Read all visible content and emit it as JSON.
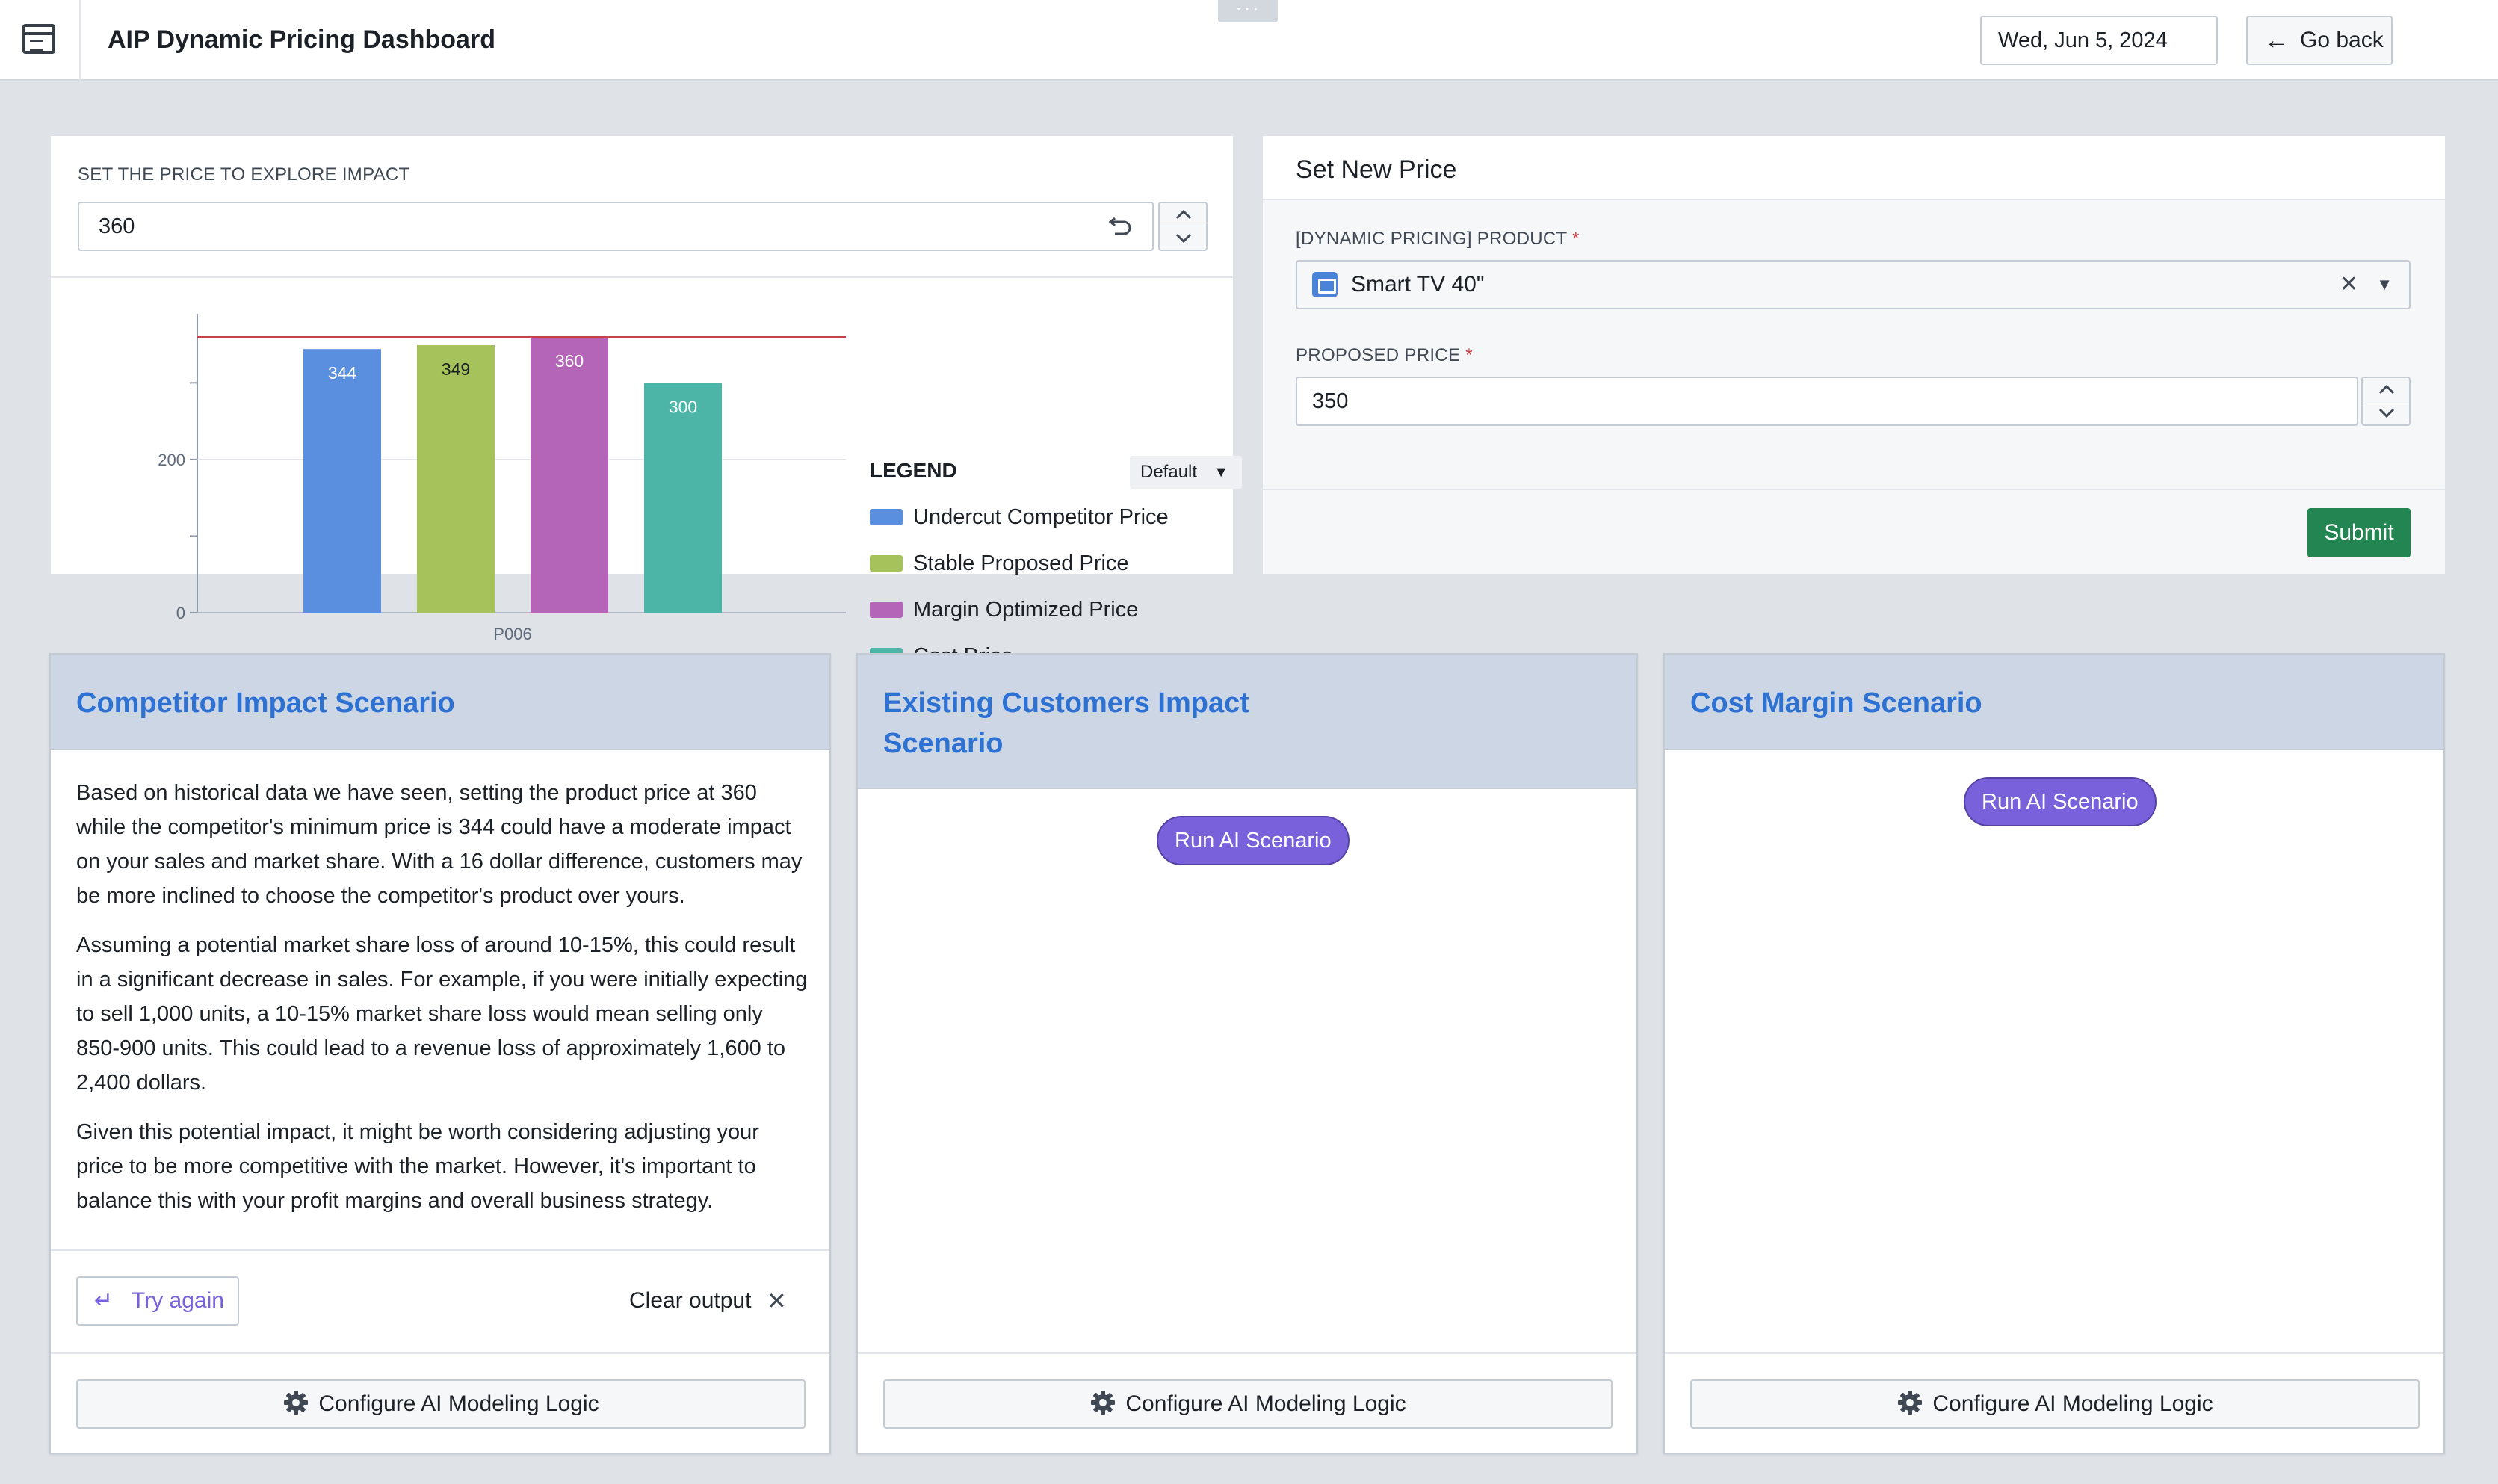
{
  "header": {
    "title": "AIP Dynamic Pricing Dashboard",
    "drag_handle": "···",
    "date": "Wed, Jun 5, 2024",
    "go_back_label": "Go back"
  },
  "explore": {
    "label": "SET THE PRICE TO EXPLORE IMPACT",
    "price_value": "360"
  },
  "chart_data": {
    "type": "bar",
    "categories": [
      "P006"
    ],
    "series": [
      {
        "name": "Undercut Competitor Price",
        "values": [
          344
        ],
        "color": "#5a8fdf"
      },
      {
        "name": "Stable Proposed Price",
        "values": [
          349
        ],
        "color": "#a6c25a"
      },
      {
        "name": "Margin Optimized Price",
        "values": [
          360
        ],
        "color": "#b565b8"
      },
      {
        "name": "Cost Price",
        "values": [
          300
        ],
        "color": "#4db5a8"
      }
    ],
    "reference_line": {
      "value": 360,
      "color": "#c8414a"
    },
    "yticks": [
      "0",
      "200"
    ],
    "ylim": [
      0,
      390
    ],
    "legend": {
      "title": "LEGEND",
      "mode": "Default",
      "position": "right"
    }
  },
  "set_price": {
    "title": "Set New Price",
    "product_label": "[DYNAMIC PRICING] PRODUCT",
    "product_value": "Smart TV 40\"",
    "proposed_label": "PROPOSED PRICE",
    "proposed_value": "350",
    "required_mark": "*",
    "submit_label": "Submit"
  },
  "scenarios": [
    {
      "title": "Competitor Impact Scenario",
      "paragraphs": [
        "Based on historical data we have seen, setting the product price at 360 while the competitor's minimum price is 344 could have a moderate impact on your sales and market share. With a 16 dollar difference, customers may be more inclined to choose the competitor's product over yours.",
        "Assuming a potential market share loss of around 10-15%, this could result in a significant decrease in sales. For example, if you were initially expecting to sell 1,000 units, a 10-15% market share loss would mean selling only 850-900 units. This could lead to a revenue loss of approximately 1,600 to 2,400 dollars.",
        "Given this potential impact, it might be worth considering adjusting your price to be more competitive with the market. However, it's important to balance this with your profit margins and overall business strategy."
      ],
      "try_again_label": "Try again",
      "clear_output_label": "Clear output",
      "config_label": "Configure AI Modeling Logic"
    },
    {
      "title": "Existing Customers Impact Scenario",
      "run_label": "Run AI Scenario",
      "config_label": "Configure AI Modeling Logic"
    },
    {
      "title": "Cost Margin Scenario",
      "run_label": "Run AI Scenario",
      "config_label": "Configure AI Modeling Logic"
    }
  ]
}
